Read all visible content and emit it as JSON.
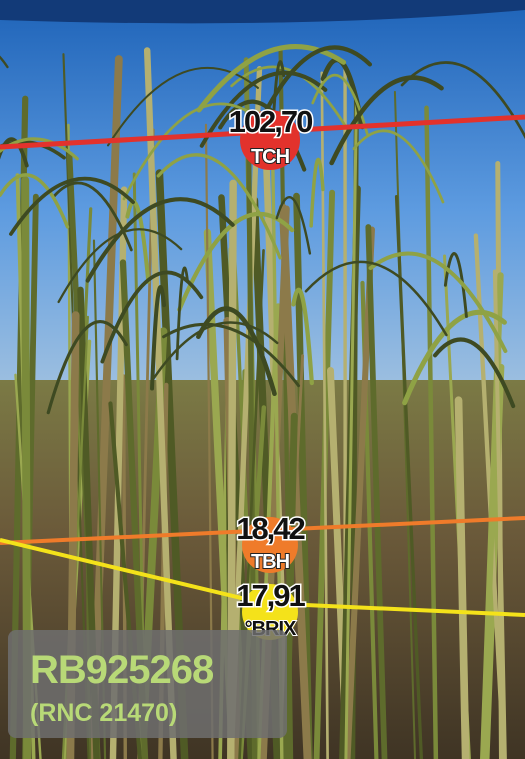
{
  "markers": [
    {
      "value": "102,70",
      "unit": "TCH"
    },
    {
      "value": "18,42",
      "unit": "TBH"
    },
    {
      "value": "17,91",
      "unit": "°BRIX"
    }
  ],
  "variety": {
    "name": "RB925268",
    "code": "(RNC 21470)"
  }
}
